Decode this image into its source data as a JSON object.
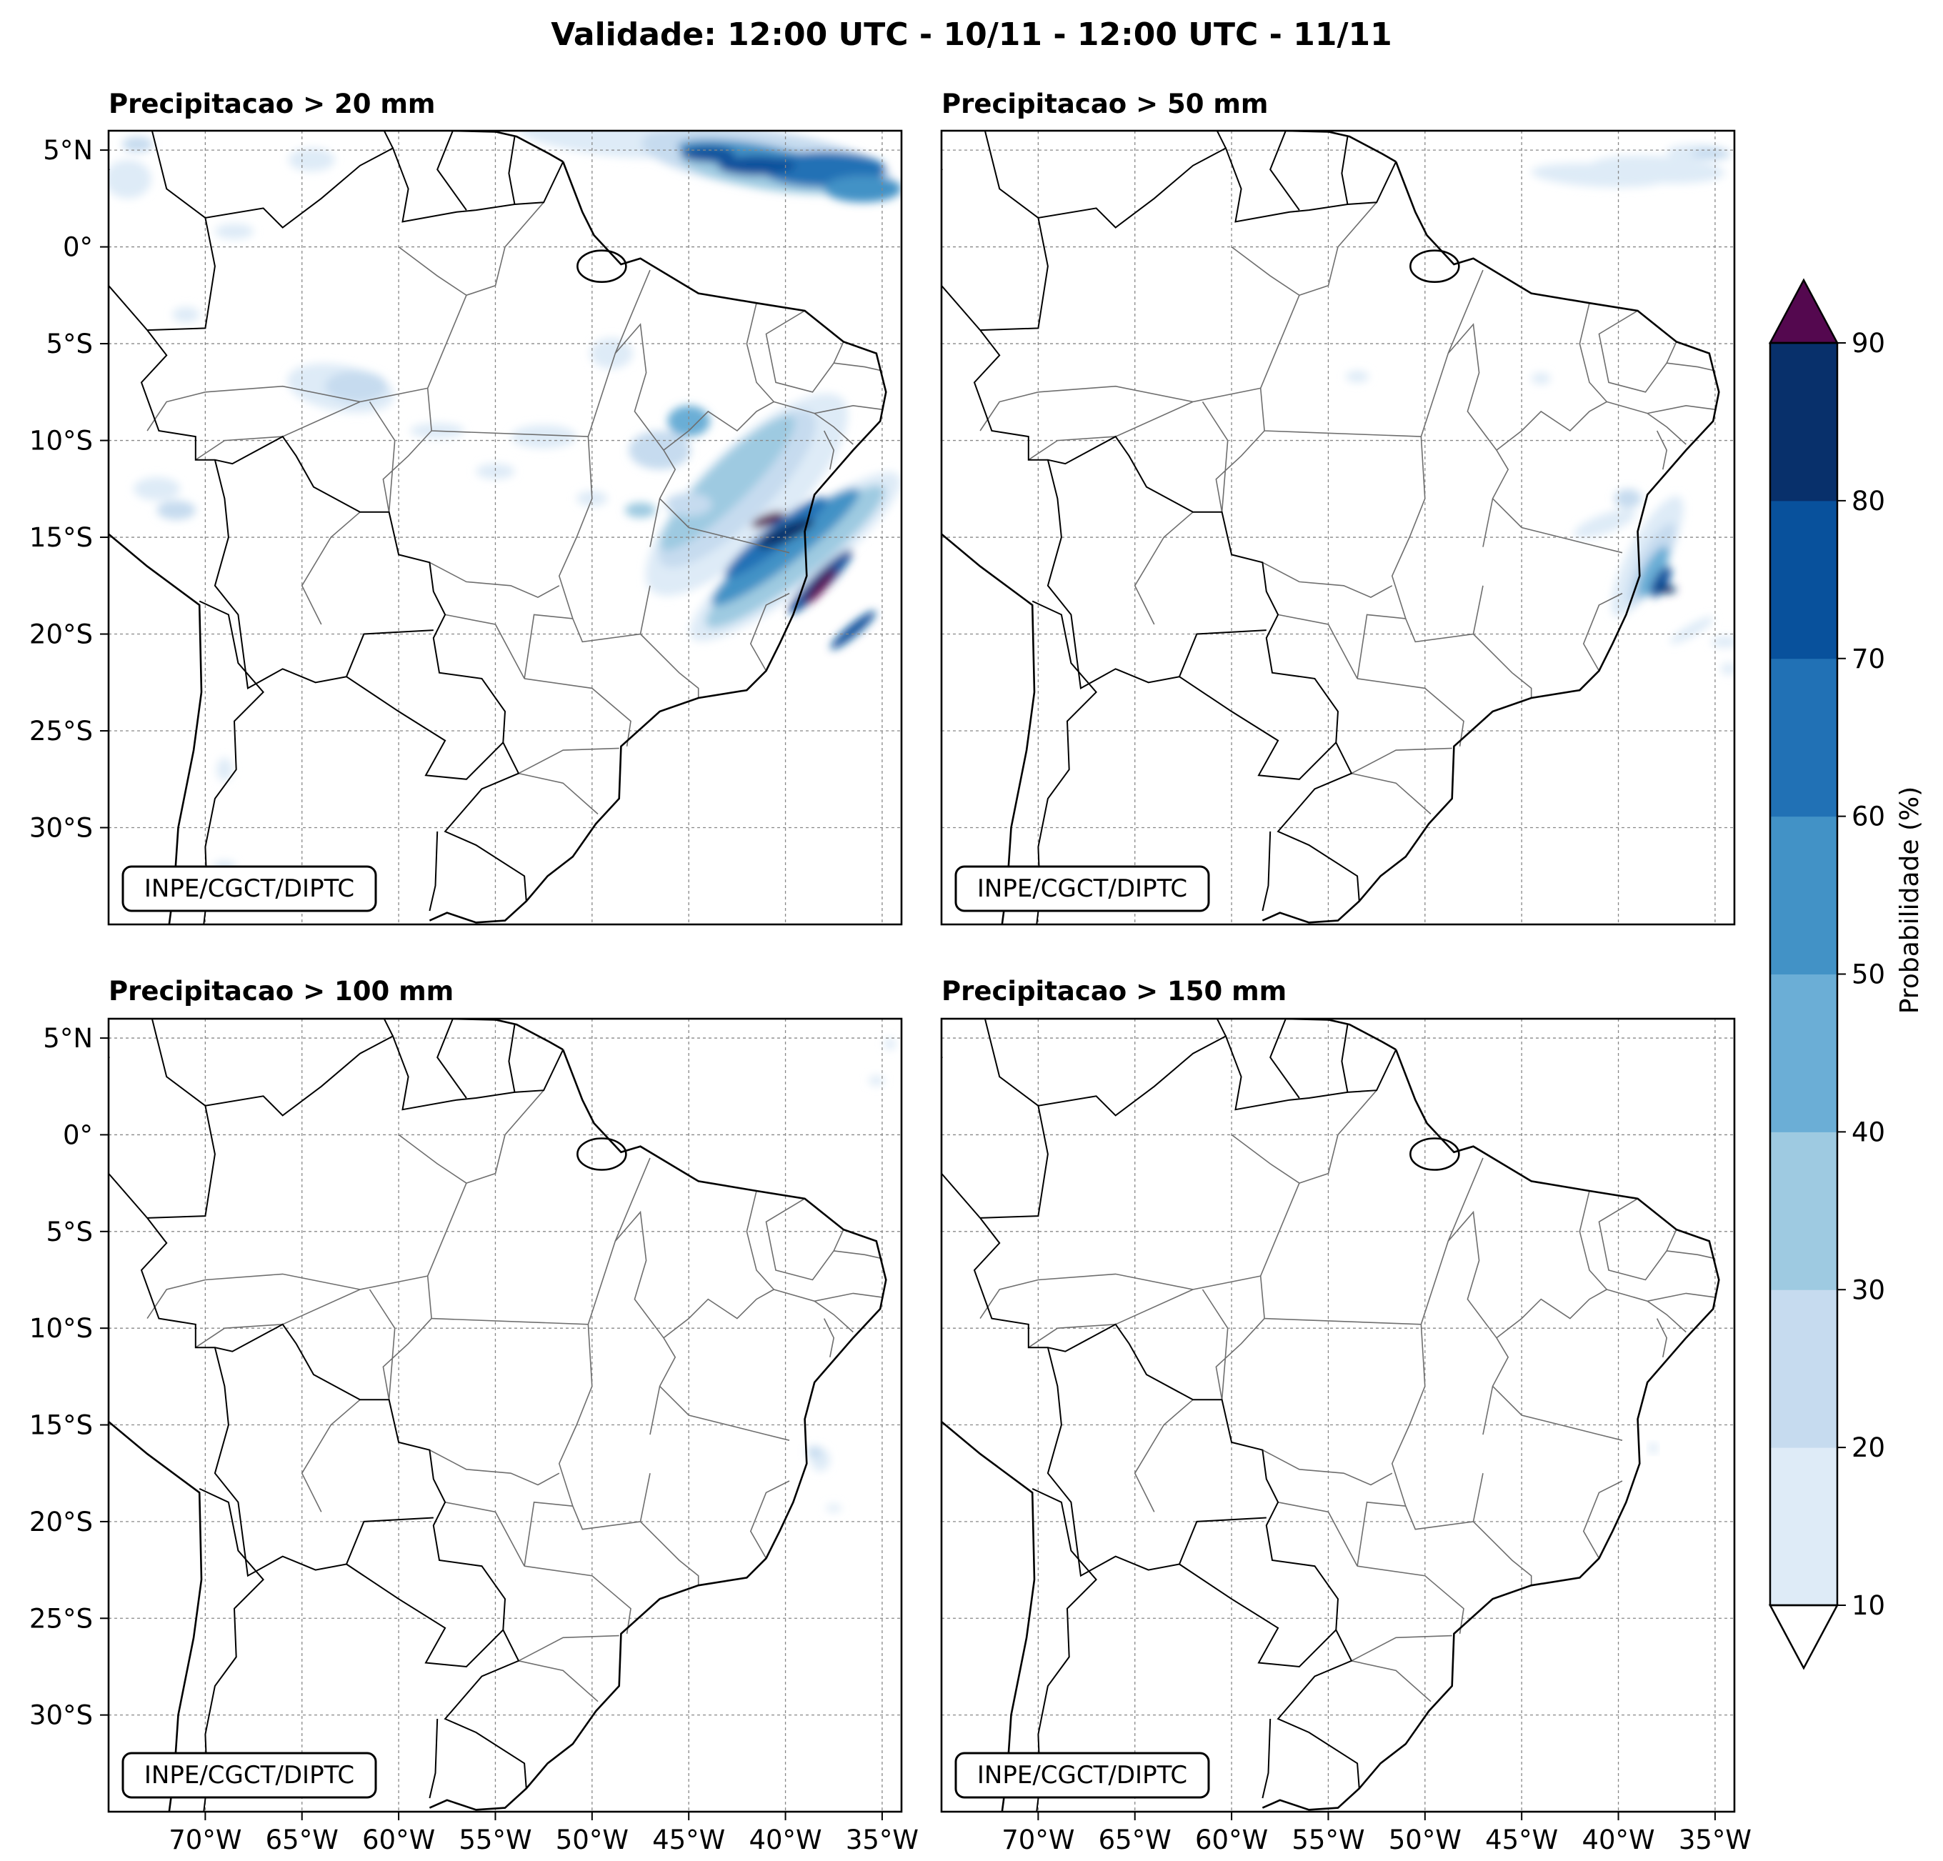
{
  "figure": {
    "title": "Validade: 12:00 UTC - 10/11 - 12:00 UTC - 11/11"
  },
  "panels": [
    {
      "title": "Precipitacao > 20 mm",
      "watermark": "INPE/CGCT/DIPTC"
    },
    {
      "title": "Precipitacao > 50 mm",
      "watermark": "INPE/CGCT/DIPTC"
    },
    {
      "title": "Precipitacao > 100 mm",
      "watermark": "INPE/CGCT/DIPTC"
    },
    {
      "title": "Precipitacao > 150 mm",
      "watermark": "INPE/CGCT/DIPTC"
    }
  ],
  "axes": {
    "lat_labels": [
      "5°N",
      "0°",
      "5°S",
      "10°S",
      "15°S",
      "20°S",
      "25°S",
      "30°S"
    ],
    "lon_labels": [
      "70°W",
      "65°W",
      "60°W",
      "55°W",
      "50°W",
      "45°W",
      "40°W",
      "35°W"
    ],
    "lat_values": [
      5,
      0,
      -5,
      -10,
      -15,
      -20,
      -25,
      -30
    ],
    "lon_values": [
      -70,
      -65,
      -60,
      -55,
      -50,
      -45,
      -40,
      -35
    ],
    "lon_range": [
      -75,
      -34
    ],
    "lat_range": [
      -35,
      6
    ]
  },
  "colorbar": {
    "label": "Probabilidade (%)",
    "ticks": [
      "10",
      "20",
      "30",
      "40",
      "50",
      "60",
      "70",
      "80",
      "90"
    ],
    "levels": [
      10,
      20,
      30,
      40,
      50,
      60,
      70,
      80,
      90
    ],
    "colors": [
      "#deebf7",
      "#c6dbef",
      "#9ecae1",
      "#6baed6",
      "#4292c6",
      "#2171b5",
      "#08519c",
      "#08306b"
    ],
    "over_color": "#54084f",
    "under_color": "#ffffff"
  }
}
